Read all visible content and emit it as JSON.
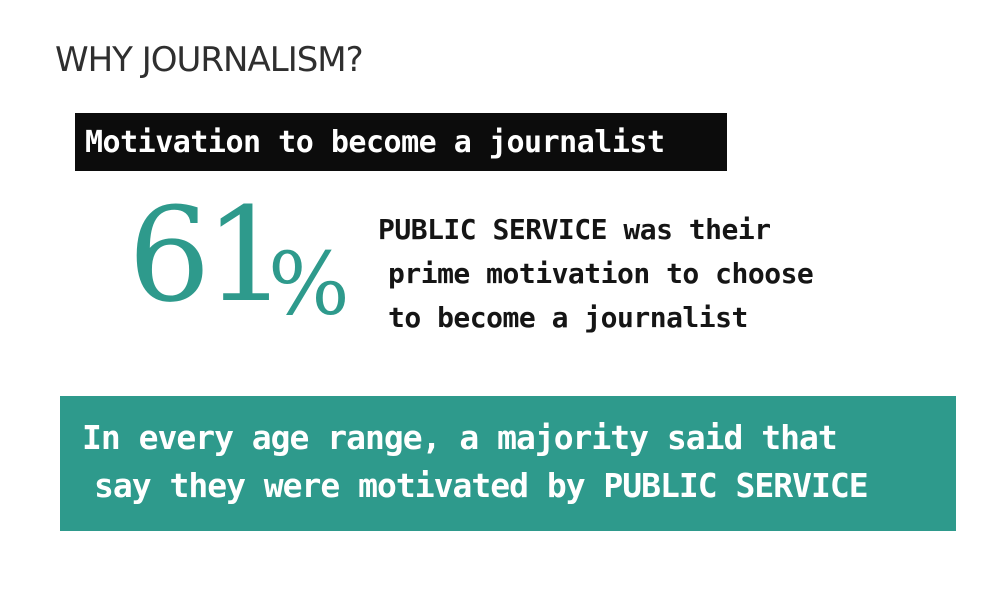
{
  "header": {
    "title": "WHY JOURNALISM?"
  },
  "label": {
    "text": "Motivation to become a journalist"
  },
  "stat": {
    "number": "61",
    "percent_sign": "%",
    "description_lines": [
      "PUBLIC SERVICE was their",
      "prime motivation to choose",
      "to become a journalist"
    ]
  },
  "callout": {
    "lines": [
      "In every age range, a majority said that",
      "say they were motivated by PUBLIC SERVICE"
    ]
  },
  "colors": {
    "accent": "#2e9a8c",
    "label_background": "#0c0c0c",
    "text_dark": "#151515"
  }
}
